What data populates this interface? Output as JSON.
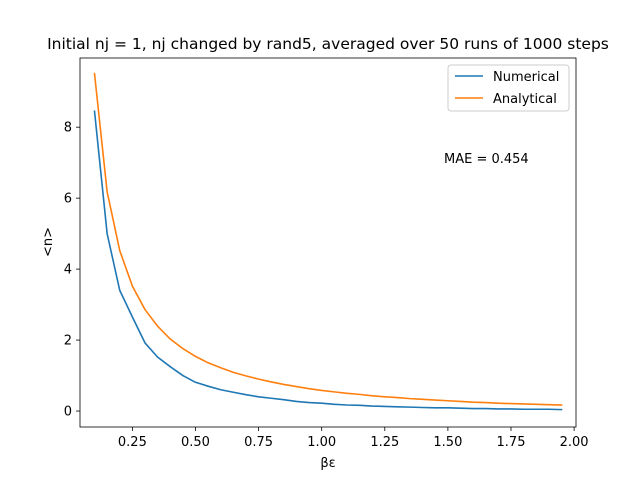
{
  "chart_data": {
    "type": "line",
    "title": "Initial nj = 1, nj changed by rand5, averaged over 50 runs of 1000 steps",
    "xlabel": "βε",
    "ylabel": "<n>",
    "xlim": [
      0.0425,
      2.0075
    ],
    "ylim": [
      -0.45,
      9.95
    ],
    "xticks": [
      0.25,
      0.5,
      0.75,
      1.0,
      1.25,
      1.5,
      1.75,
      2.0
    ],
    "xtick_labels": [
      "0.25",
      "0.50",
      "0.75",
      "1.00",
      "1.25",
      "1.50",
      "1.75",
      "2.00"
    ],
    "yticks": [
      0,
      2,
      4,
      6,
      8
    ],
    "ytick_labels": [
      "0",
      "2",
      "4",
      "6",
      "8"
    ],
    "grid": false,
    "legend_position": "top-right",
    "annotation": "MAE = 0.454",
    "x": [
      0.1,
      0.15,
      0.2,
      0.25,
      0.3,
      0.35,
      0.4,
      0.45,
      0.5,
      0.55,
      0.6,
      0.65,
      0.7,
      0.75,
      0.8,
      0.85,
      0.9,
      0.95,
      1.0,
      1.05,
      1.1,
      1.15,
      1.2,
      1.25,
      1.3,
      1.35,
      1.4,
      1.45,
      1.5,
      1.55,
      1.6,
      1.65,
      1.7,
      1.75,
      1.8,
      1.85,
      1.9,
      1.95
    ],
    "series": [
      {
        "name": "Numerical",
        "color": "#1f77b4",
        "values": [
          8.45,
          5.0,
          3.4,
          2.65,
          1.92,
          1.52,
          1.25,
          1.0,
          0.81,
          0.7,
          0.6,
          0.53,
          0.46,
          0.4,
          0.36,
          0.32,
          0.27,
          0.24,
          0.22,
          0.19,
          0.17,
          0.16,
          0.14,
          0.13,
          0.12,
          0.11,
          0.1,
          0.09,
          0.09,
          0.08,
          0.07,
          0.07,
          0.06,
          0.06,
          0.05,
          0.05,
          0.05,
          0.04
        ]
      },
      {
        "name": "Analytical",
        "color": "#ff7f0e",
        "values": [
          9.51,
          6.18,
          4.52,
          3.52,
          2.86,
          2.39,
          2.03,
          1.76,
          1.54,
          1.36,
          1.22,
          1.09,
          0.99,
          0.9,
          0.82,
          0.75,
          0.69,
          0.63,
          0.58,
          0.54,
          0.5,
          0.47,
          0.43,
          0.4,
          0.38,
          0.35,
          0.33,
          0.31,
          0.29,
          0.27,
          0.25,
          0.24,
          0.22,
          0.21,
          0.2,
          0.19,
          0.18,
          0.17
        ]
      }
    ]
  }
}
